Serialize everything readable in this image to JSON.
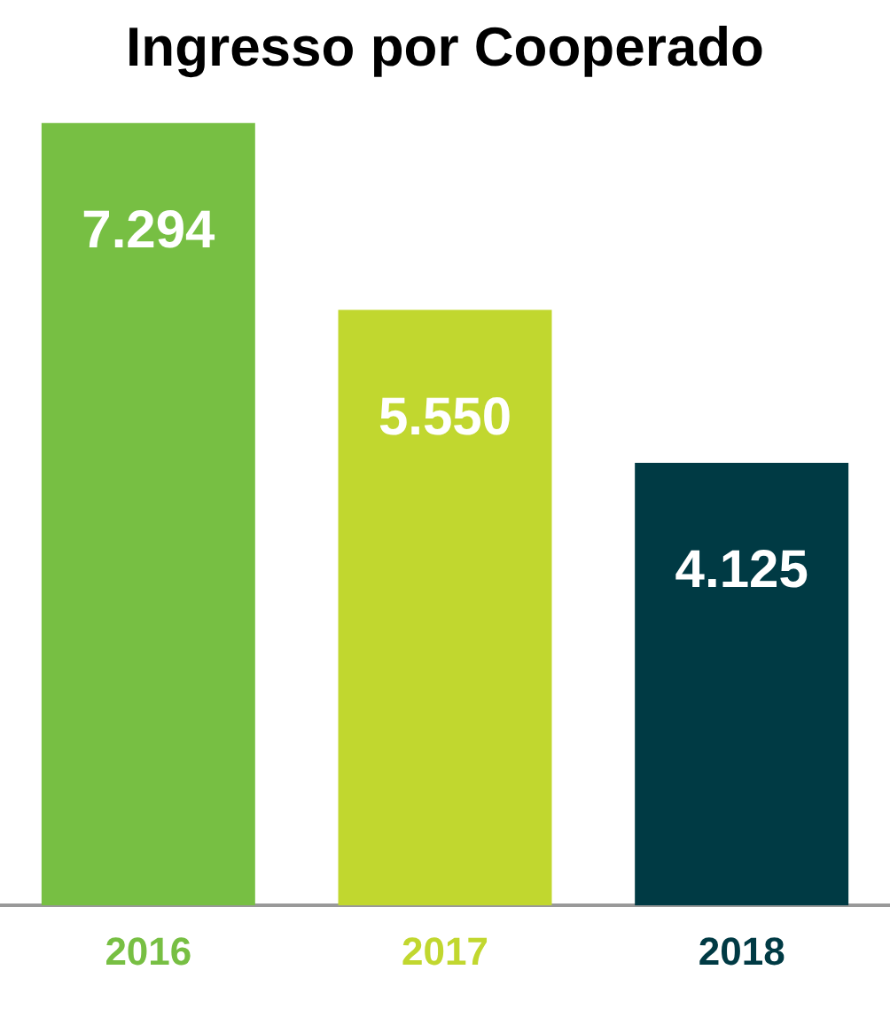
{
  "chart_data": {
    "type": "bar",
    "title": "Ingresso por Cooperado",
    "categories": [
      "2016",
      "2017",
      "2018"
    ],
    "values": [
      7294,
      5550,
      4125
    ],
    "value_labels": [
      "7.294",
      "5.550",
      "4.125"
    ],
    "colors": [
      "#77bf43",
      "#c1d72f",
      "#003a44"
    ],
    "grid": false,
    "legend": false,
    "tick_labels": "x"
  }
}
